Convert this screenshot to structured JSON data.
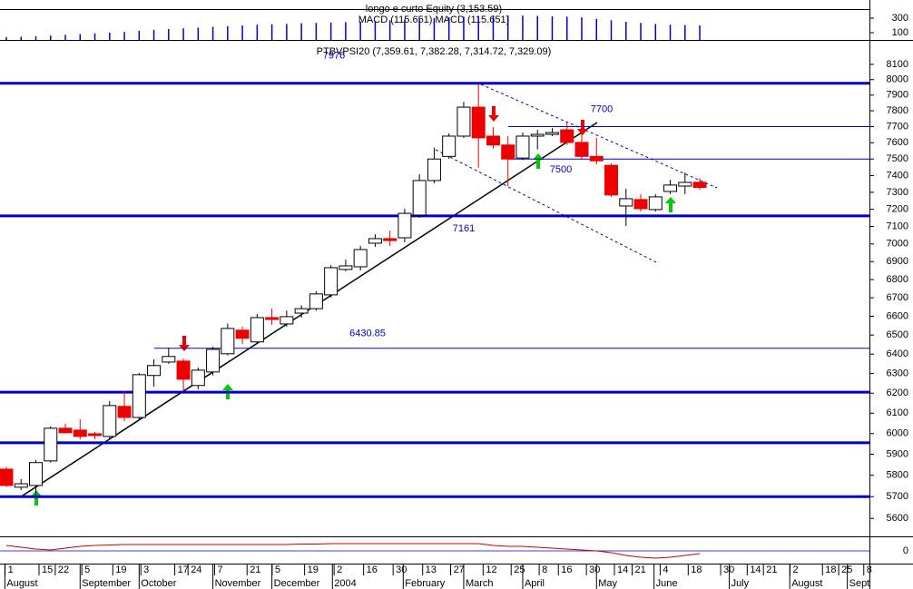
{
  "chart_data": [
    {
      "type": "bar",
      "title": "longo e curto Equity (3,153.59)",
      "subtitle": "MACD (115.651),MACD (115.651)",
      "color": "#0000cc",
      "values": [
        40,
        45,
        50,
        60,
        70,
        80,
        90,
        100,
        110,
        125,
        140,
        150,
        160,
        170,
        180,
        190,
        200,
        210,
        215,
        220,
        230,
        235,
        240,
        245,
        250,
        260,
        270,
        280,
        290,
        300,
        310,
        320,
        330,
        335,
        335,
        335,
        330,
        325,
        320,
        310,
        290,
        270,
        250,
        235,
        220,
        210,
        205,
        200
      ],
      "ylim": [
        0,
        425
      ],
      "yticks": [
        100,
        300
      ]
    },
    {
      "type": "candlestick",
      "title": "PTBVPSI20 (7,359.61, 7,382.28, 7,314.72, 7,329.09)",
      "open": [
        5829,
        5744,
        5752,
        5868,
        6026,
        6017,
        5999,
        5986,
        6134,
        6079,
        6290,
        6359,
        6364,
        6239,
        6308,
        6402,
        6526,
        6464,
        6593,
        6559,
        6617,
        6641,
        6716,
        6856,
        6871,
        7004,
        7030,
        7035,
        7166,
        7370,
        7516,
        7641,
        7823,
        7641,
        7586,
        7506,
        7641,
        7652,
        7680,
        7602,
        7516,
        7462,
        7219,
        7257,
        7198,
        7305,
        7337,
        7359.61
      ],
      "high": [
        5840,
        5782,
        5873,
        6035,
        6048,
        6070,
        6008,
        6160,
        6211,
        6303,
        6373,
        6434,
        6378,
        6331,
        6439,
        6561,
        6545,
        6612,
        6641,
        6631,
        6660,
        6736,
        6880,
        6911,
        6988,
        7055,
        7076,
        7203,
        7408,
        7570,
        7658,
        7857,
        7970,
        7697,
        7641,
        7663,
        7680,
        7691,
        7725,
        7736,
        7630,
        7473,
        7321,
        7289,
        7289,
        7375,
        7418,
        7382.28
      ],
      "low": [
        5745,
        5731,
        5710,
        5860,
        6000,
        5972,
        5972,
        5972,
        6061,
        6070,
        6233,
        6350,
        6211,
        6220,
        6290,
        6393,
        6453,
        6458,
        6554,
        6545,
        6593,
        6631,
        6702,
        6846,
        6851,
        6983,
        6988,
        7009,
        7150,
        7354,
        7500,
        7630,
        7447,
        7564,
        7337,
        7494,
        7559,
        7641,
        7586,
        7494,
        7467,
        7273,
        7103,
        7187,
        7187,
        7289,
        7289,
        7314.72
      ],
      "close": [
        5752,
        5760,
        5860,
        6026,
        6004,
        5986,
        5990,
        6138,
        6079,
        6294,
        6341,
        6388,
        6271,
        6317,
        6425,
        6535,
        6483,
        6593,
        6583,
        6598,
        6641,
        6721,
        6866,
        6876,
        6968,
        7030,
        7019,
        7176,
        7370,
        7500,
        7641,
        7823,
        7630,
        7586,
        7500,
        7641,
        7652,
        7663,
        7602,
        7516,
        7489,
        7284,
        7262,
        7203,
        7273,
        7343,
        7359,
        7329.09
      ],
      "up_color": "#ffffff",
      "down_color": "#ee0000",
      "log_scale": true,
      "ylim": [
        5523,
        8238
      ],
      "yticks": [
        5600,
        5700,
        5800,
        5900,
        6000,
        6100,
        6200,
        6300,
        6400,
        6500,
        6600,
        6700,
        6800,
        6900,
        7000,
        7100,
        7200,
        7300,
        7400,
        7500,
        7600,
        7700,
        7800,
        7900,
        8000,
        8100
      ],
      "xlim": [
        -0.43,
        58.5
      ],
      "xticks": [
        {
          "value": 0.1,
          "label": "1"
        },
        {
          "value": 2.4,
          "label": "15"
        },
        {
          "value": 3.5,
          "label": "22"
        },
        {
          "value": 5.3,
          "label": "5"
        },
        {
          "value": 7.4,
          "label": "19"
        },
        {
          "value": 9.3,
          "label": "3"
        },
        {
          "value": 11.6,
          "label": "17"
        },
        {
          "value": 12.5,
          "label": "24"
        },
        {
          "value": 14.3,
          "label": "7"
        },
        {
          "value": 16.5,
          "label": "21"
        },
        {
          "value": 18.2,
          "label": "5"
        },
        {
          "value": 20.4,
          "label": "19"
        },
        {
          "value": 22.4,
          "label": "2"
        },
        {
          "value": 24.4,
          "label": "16"
        },
        {
          "value": 26.4,
          "label": "30"
        },
        {
          "value": 28.4,
          "label": "13"
        },
        {
          "value": 30.3,
          "label": "27"
        },
        {
          "value": 32.5,
          "label": "12"
        },
        {
          "value": 34.4,
          "label": "25"
        },
        {
          "value": 36.3,
          "label": "8"
        },
        {
          "value": 37.6,
          "label": "16"
        },
        {
          "value": 39.5,
          "label": "30"
        },
        {
          "value": 41.4,
          "label": "14"
        },
        {
          "value": 42.6,
          "label": "21"
        },
        {
          "value": 44.5,
          "label": "4"
        },
        {
          "value": 46.4,
          "label": "18"
        },
        {
          "value": 48.6,
          "label": "30"
        },
        {
          "value": 50.4,
          "label": "14"
        },
        {
          "value": 51.5,
          "label": "21"
        },
        {
          "value": 53.3,
          "label": "2"
        },
        {
          "value": 55.5,
          "label": "18"
        },
        {
          "value": 56.6,
          "label": "25"
        },
        {
          "value": 58.3,
          "label": "8"
        }
      ],
      "month_ticks": [
        {
          "value": -0.1,
          "label": "August"
        },
        {
          "value": 5.0,
          "label": "September"
        },
        {
          "value": 9.0,
          "label": "October"
        },
        {
          "value": 14.0,
          "label": "November"
        },
        {
          "value": 18.0,
          "label": "December"
        },
        {
          "value": 22.1,
          "label": "2004"
        },
        {
          "value": 26.9,
          "label": "February"
        },
        {
          "value": 31.0,
          "label": "March"
        },
        {
          "value": 35.0,
          "label": "April"
        },
        {
          "value": 40.0,
          "label": "May"
        },
        {
          "value": 43.9,
          "label": "June"
        },
        {
          "value": 49.0,
          "label": "July"
        },
        {
          "value": 53.1,
          "label": "August"
        },
        {
          "value": 57.0,
          "label": "Sept"
        }
      ],
      "line_color": "#0000cc",
      "thick_levels": [
        7976,
        7161,
        6205,
        5955,
        5700
      ],
      "thin_levels": [
        7700,
        7500,
        6430.85
      ]
    },
    {
      "type": "line",
      "series": [
        {
          "color": "#cc0000",
          "values": [
            60,
            40,
            20,
            10,
            30,
            50,
            60,
            65,
            70,
            70,
            70,
            70,
            70,
            70,
            70,
            70,
            70,
            70,
            70,
            70,
            75,
            75,
            80,
            80,
            80,
            80,
            80,
            80,
            80,
            80,
            80,
            80,
            80,
            60,
            50,
            50,
            40,
            30,
            20,
            10,
            0,
            -20,
            -50,
            -70,
            -80,
            -70,
            -50,
            -30
          ]
        }
      ],
      "ylim": [
        -130,
        150
      ],
      "yticks": [
        0
      ]
    }
  ]
}
